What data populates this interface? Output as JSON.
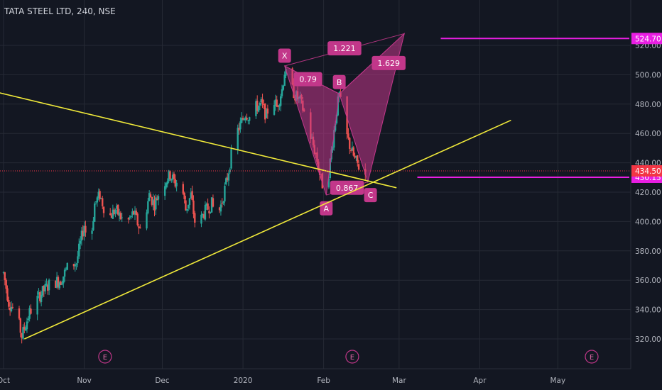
{
  "header": {
    "title": "TATA STEEL LTD, 240, NSE"
  },
  "colors": {
    "background": "#131722",
    "grid": "#262a35",
    "up": "#26a69a",
    "down": "#ef5350",
    "trendline": "#f1ea3a",
    "pattern": "#c2378a",
    "level": "#e91ee3",
    "axis_text": "#b2b5be",
    "price_tag": "#f23645"
  },
  "chart_data": {
    "type": "candlestick",
    "title": "TATA STEEL LTD, 240, NSE",
    "ylim": [
      305,
      528
    ],
    "y_ticks": [
      320,
      340,
      360,
      380,
      400,
      420,
      440,
      460,
      480,
      500,
      520
    ],
    "y_tick_labels": [
      "320.00",
      "340.00",
      "360.00",
      "380.00",
      "400.00",
      "420.00",
      "440.00",
      "460.00",
      "480.00",
      "500.00",
      "520.00"
    ],
    "x_range": [
      "2019-10-01",
      "2020-05-14"
    ],
    "x_tick_dates": [
      "2019-10-01",
      "2019-11-01",
      "2019-12-01",
      "2020-01-01",
      "2020-02-01",
      "2020-03-01",
      "2020-04-01",
      "2020-05-01"
    ],
    "x_tick_labels": [
      "Oct",
      "Nov",
      "Dec",
      "2020",
      "Feb",
      "Mar",
      "Apr",
      "May"
    ],
    "price_path": [
      [
        "2019-10-01",
        365
      ],
      [
        "2019-10-03",
        345
      ],
      [
        "2019-10-06",
        337
      ],
      [
        "2019-10-08",
        322
      ],
      [
        "2019-10-11",
        338
      ],
      [
        "2019-10-15",
        350
      ],
      [
        "2019-10-19",
        358
      ],
      [
        "2019-10-23",
        360
      ],
      [
        "2019-10-26",
        370
      ],
      [
        "2019-10-29",
        372
      ],
      [
        "2019-11-01",
        398
      ],
      [
        "2019-11-03",
        378
      ],
      [
        "2019-11-05",
        412
      ],
      [
        "2019-11-07",
        418
      ],
      [
        "2019-11-10",
        402
      ],
      [
        "2019-11-13",
        408
      ],
      [
        "2019-11-17",
        398
      ],
      [
        "2019-11-20",
        406
      ],
      [
        "2019-11-23",
        392
      ],
      [
        "2019-11-26",
        418
      ],
      [
        "2019-11-28",
        412
      ],
      [
        "2019-12-01",
        425
      ],
      [
        "2019-12-04",
        432
      ],
      [
        "2019-12-06",
        426
      ],
      [
        "2019-12-08",
        430
      ],
      [
        "2019-12-10",
        408
      ],
      [
        "2019-12-12",
        418
      ],
      [
        "2019-12-14",
        394
      ],
      [
        "2019-12-17",
        406
      ],
      [
        "2019-12-20",
        412
      ],
      [
        "2019-12-22",
        402
      ],
      [
        "2019-12-24",
        414
      ],
      [
        "2019-12-26",
        430
      ],
      [
        "2019-12-28",
        450
      ],
      [
        "2019-12-30",
        462
      ],
      [
        "2020-01-02",
        474
      ],
      [
        "2020-01-04",
        470
      ],
      [
        "2020-01-06",
        478
      ],
      [
        "2020-01-08",
        480
      ],
      [
        "2020-01-10",
        472
      ],
      [
        "2020-01-12",
        486
      ],
      [
        "2020-01-14",
        478
      ],
      [
        "2020-01-16",
        490
      ],
      [
        "2020-01-17",
        502
      ],
      [
        "2020-01-19",
        494
      ],
      [
        "2020-01-21",
        486
      ],
      [
        "2020-01-23",
        482
      ],
      [
        "2020-01-25",
        472
      ],
      [
        "2020-01-27",
        458
      ],
      [
        "2020-01-29",
        446
      ],
      [
        "2020-01-31",
        428
      ],
      [
        "2020-02-02",
        418
      ],
      [
        "2020-02-04",
        448
      ],
      [
        "2020-02-06",
        476
      ],
      [
        "2020-02-07",
        486
      ],
      [
        "2020-02-09",
        464
      ],
      [
        "2020-02-11",
        452
      ],
      [
        "2020-02-13",
        442
      ],
      [
        "2020-02-15",
        436
      ],
      [
        "2020-02-17",
        432
      ]
    ],
    "trendlines": [
      {
        "from": [
          "2019-09-24",
          490
        ],
        "to": [
          "2020-02-29",
          423
        ]
      },
      {
        "from": [
          "2019-10-09",
          320
        ],
        "to": [
          "2020-04-13",
          469
        ]
      }
    ],
    "pattern": {
      "points": {
        "X": [
          "2020-01-17",
          506
        ],
        "A": [
          "2020-02-02",
          418
        ],
        "B": [
          "2020-02-07",
          487
        ],
        "C": [
          "2020-02-18",
          427
        ],
        "D": [
          "2020-03-03",
          528
        ]
      },
      "labels": [
        {
          "text": "X",
          "at": [
            "2020-01-17",
            513
          ]
        },
        {
          "text": "A",
          "at": [
            "2020-02-02",
            409
          ]
        },
        {
          "text": "B",
          "at": [
            "2020-02-07",
            495
          ]
        },
        {
          "text": "C",
          "at": [
            "2020-02-19",
            418
          ]
        }
      ],
      "ratios": [
        {
          "text": "1.221",
          "at": [
            "2020-02-09",
            518
          ]
        },
        {
          "text": "1.629",
          "at": [
            "2020-02-26",
            508
          ]
        },
        {
          "text": "0.79",
          "at": [
            "2020-01-26",
            497
          ]
        },
        {
          "text": "0.867",
          "at": [
            "2020-02-10",
            423
          ]
        }
      ]
    },
    "levels": [
      {
        "value": 524.7,
        "from_date": "2020-03-17",
        "label": "524.70"
      },
      {
        "value": 430.15,
        "from_date": "2020-03-08",
        "label": "430.15"
      }
    ],
    "current_price": {
      "value": 434.5,
      "label": "434.50"
    },
    "event_markers": [
      {
        "text": "E",
        "date": "2019-11-09"
      },
      {
        "text": "E",
        "date": "2020-02-12"
      },
      {
        "text": "E",
        "date": "2020-05-14"
      }
    ]
  }
}
